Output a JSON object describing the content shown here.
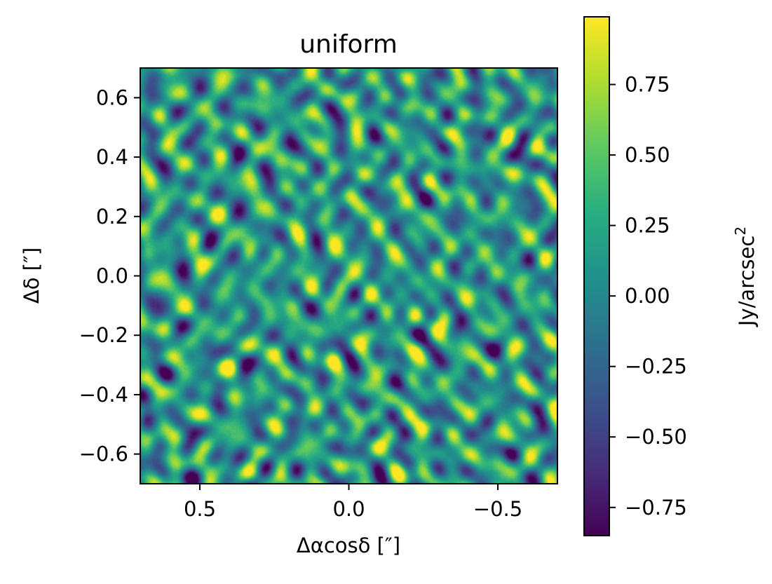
{
  "chart_data": {
    "type": "heatmap",
    "title": "uniform",
    "xlabel": "Δαcosδ [″]",
    "ylabel": "Δδ [″]",
    "xlim": [
      0.7,
      -0.7
    ],
    "ylim": [
      -0.7,
      0.7
    ],
    "x_ticks": [
      0.5,
      0.0,
      -0.5
    ],
    "x_tick_labels": [
      "0.5",
      "0.0",
      "−0.5"
    ],
    "y_ticks": [
      0.6,
      0.4,
      0.2,
      0.0,
      -0.2,
      -0.4,
      -0.6
    ],
    "y_tick_labels": [
      "0.6",
      "0.4",
      "0.2",
      "0.0",
      "−0.2",
      "−0.4",
      "−0.6"
    ],
    "colorbar": {
      "label": "Jy/arcsec",
      "label_superscript": "2",
      "colormap": "viridis",
      "vmin": -0.85,
      "vmax": 0.99,
      "ticks": [
        0.75,
        0.5,
        0.25,
        0.0,
        -0.25,
        -0.5,
        -0.75
      ],
      "tick_labels": [
        "0.75",
        "0.50",
        "0.25",
        "0.00",
        "−0.25",
        "−0.50",
        "−0.75"
      ]
    },
    "background_level": 0.12,
    "noise_pattern": "fringed noise oriented diagonally, slightly brighter near center (0,0)"
  }
}
